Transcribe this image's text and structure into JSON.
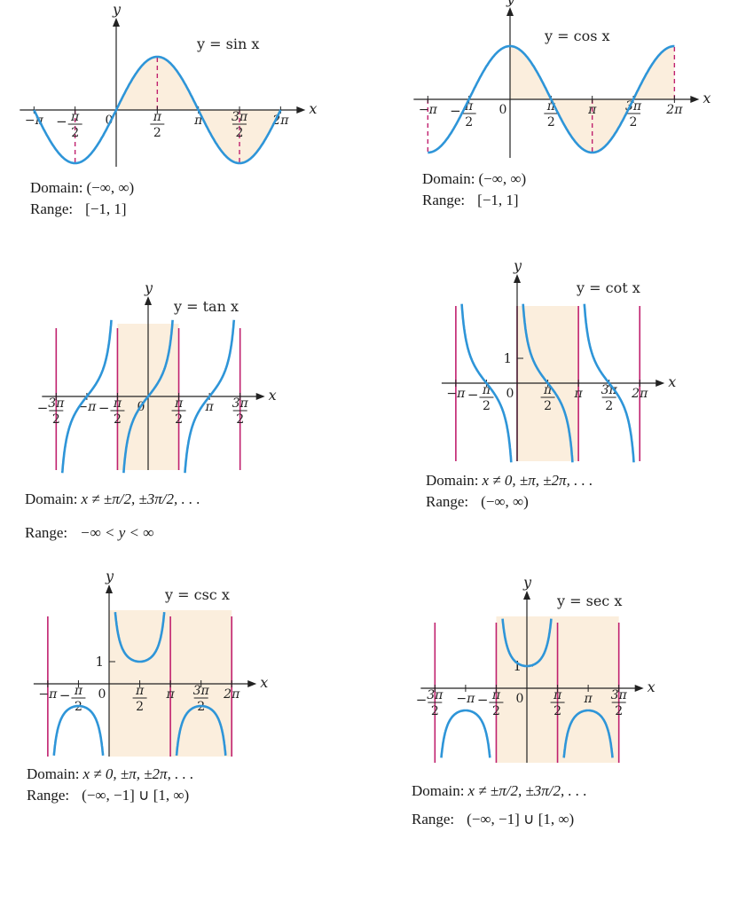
{
  "colors": {
    "curve": "#2e95d8",
    "shade": "#fbeedd",
    "asymptote": "#c0206e",
    "axis": "#222222"
  },
  "chart_data": [
    {
      "type": "line",
      "title": "y = sin x",
      "xlabel": "x",
      "ylabel": "y",
      "xlim": [
        -3.14159,
        6.28318
      ],
      "ylim": [
        -1,
        1
      ],
      "xticks": [
        "−π",
        "−π/2",
        "0",
        "π/2",
        "π",
        "3π/2",
        "2π"
      ],
      "yticks": [],
      "shaded_interval": [
        0,
        6.28318
      ],
      "guide_lines_at": [
        "−π/2",
        "π/2",
        "3π/2"
      ],
      "series": [
        {
          "x": [
            -3.142,
            -2.356,
            -1.571,
            -0.785,
            0,
            0.785,
            1.571,
            2.356,
            3.142,
            3.927,
            4.712,
            5.498,
            6.283
          ],
          "y": [
            0,
            -0.707,
            -1,
            -0.707,
            0,
            0.707,
            1,
            0.707,
            0,
            -0.707,
            -1,
            -0.707,
            0
          ]
        }
      ],
      "domain_label": "Domain:",
      "domain_value": "(−∞, ∞)",
      "range_label": "Range:",
      "range_value": "[−1, 1]"
    },
    {
      "type": "line",
      "title": "y = cos x",
      "xlabel": "x",
      "ylabel": "y",
      "xlim": [
        -3.14159,
        6.28318
      ],
      "ylim": [
        -1,
        1
      ],
      "xticks": [
        "−π",
        "−π/2",
        "0",
        "π/2",
        "π",
        "3π/2",
        "2π"
      ],
      "yticks": [],
      "shaded_interval": [
        0,
        6.28318
      ],
      "guide_lines_at": [
        "−π",
        "π",
        "2π"
      ],
      "series": [
        {
          "x": [
            -3.142,
            -2.356,
            -1.571,
            -0.785,
            0,
            0.785,
            1.571,
            2.356,
            3.142,
            3.927,
            4.712,
            5.498,
            6.283
          ],
          "y": [
            -1,
            -0.707,
            0,
            0.707,
            1,
            0.707,
            0,
            -0.707,
            -1,
            -0.707,
            0,
            0.707,
            1
          ]
        }
      ],
      "domain_label": "Domain:",
      "domain_value": "(−∞, ∞)",
      "range_label": "Range:",
      "range_value": "[−1, 1]"
    },
    {
      "type": "line",
      "title": "y = tan x",
      "xlabel": "x",
      "ylabel": "y",
      "xlim": [
        -4.712,
        4.712
      ],
      "ylim": [
        -3.5,
        3.5
      ],
      "xticks": [
        "−3π/2",
        "−π",
        "−π/2",
        "0",
        "π/2",
        "π",
        "3π/2"
      ],
      "yticks": [],
      "shaded_interval": [
        -1.5708,
        1.5708
      ],
      "asymptotes": [
        "−3π/2",
        "−π/2",
        "π/2",
        "3π/2"
      ],
      "series": [
        {
          "x": [
            -4.4,
            -3.93,
            -3.14,
            -2.36,
            -1.9,
            -1.2,
            -0.785,
            0,
            0.785,
            1.2,
            1.9,
            2.36,
            3.14,
            3.93,
            4.4
          ],
          "y": [
            3.1,
            1,
            0,
            -1,
            2.9,
            -2.6,
            -1,
            0,
            1,
            2.6,
            -2.9,
            -1,
            0,
            1,
            -3.1
          ]
        }
      ],
      "domain_label": "Domain:",
      "domain_value": "x ≠ ±π/2, ±3π/2, . . .",
      "range_label": "Range:",
      "range_value": "−∞ < y < ∞"
    },
    {
      "type": "line",
      "title": "y = cot x",
      "xlabel": "x",
      "ylabel": "y",
      "xlim": [
        -3.14159,
        6.28318
      ],
      "ylim": [
        -3.5,
        3.5
      ],
      "xticks": [
        "−π",
        "−π/2",
        "0",
        "π/2",
        "π",
        "3π/2",
        "2π"
      ],
      "yticks": [
        "1"
      ],
      "shaded_interval": [
        0,
        3.14159
      ],
      "asymptotes": [
        "−π",
        "0",
        "π",
        "2π"
      ],
      "series": [
        {
          "x": [
            -2.8,
            -2.356,
            -1.571,
            -0.785,
            -0.3,
            0.3,
            0.785,
            1.571,
            2.356,
            2.8,
            3.45,
            3.93,
            4.712,
            5.5,
            5.95
          ],
          "y": [
            2.8,
            1,
            0,
            -1,
            -3.2,
            3.2,
            1,
            0,
            -1,
            -2.8,
            3.2,
            1,
            0,
            -1,
            -3.2
          ]
        }
      ],
      "domain_label": "Domain:",
      "domain_value": "x ≠ 0, ±π, ±2π, . . .",
      "range_label": "Range:",
      "range_value": "(−∞, ∞)"
    },
    {
      "type": "line",
      "title": "y = csc x",
      "xlabel": "x",
      "ylabel": "y",
      "xlim": [
        -3.14159,
        6.28318
      ],
      "ylim": [
        -3,
        3
      ],
      "xticks": [
        "−π",
        "−π/2",
        "0",
        "π/2",
        "π",
        "3π/2",
        "2π"
      ],
      "yticks": [
        "1"
      ],
      "shaded_interval": [
        0,
        6.28318
      ],
      "asymptotes": [
        "−π",
        "π",
        "2π"
      ],
      "series": [
        {
          "x": [
            0.35,
            0.785,
            1.571,
            2.356,
            2.8,
            3.5,
            3.93,
            4.712,
            5.5,
            5.93
          ],
          "y": [
            2.9,
            1.414,
            1,
            1.414,
            2.9,
            -2.9,
            -1.414,
            -1,
            -1.414,
            -2.9
          ]
        }
      ],
      "domain_label": "Domain:",
      "domain_value": "x ≠ 0, ±π, ±2π, . . .",
      "range_label": "Range:",
      "range_value": "(−∞, −1] ∪ [1, ∞)"
    },
    {
      "type": "line",
      "title": "y = sec x",
      "xlabel": "x",
      "ylabel": "y",
      "xlim": [
        -4.712,
        4.712
      ],
      "ylim": [
        -3,
        3
      ],
      "xticks": [
        "−3π/2",
        "−π",
        "−π/2",
        "0",
        "π/2",
        "π",
        "3π/2"
      ],
      "yticks": [
        "1"
      ],
      "shaded_interval": [
        -1.5708,
        4.712
      ],
      "asymptotes": [
        "−3π/2",
        "−π/2",
        "π/2",
        "3π/2"
      ],
      "series": [
        {
          "x": [
            -4.3,
            -3.93,
            -3.14,
            -2.36,
            -1.9,
            -1.2,
            -0.785,
            0,
            0.785,
            1.2,
            1.9,
            2.36,
            3.14,
            3.93,
            4.3
          ],
          "y": [
            -2.4,
            -1.414,
            -1,
            -1.414,
            -2.4,
            2.7,
            1.414,
            1,
            1.414,
            2.7,
            -2.4,
            -1.414,
            -1,
            -1.414,
            -2.4
          ]
        }
      ],
      "domain_label": "Domain:",
      "domain_value": "x ≠ ±π/2, ±3π/2, . . .",
      "range_label": "Range:",
      "range_value": "(−∞, −1] ∪ [1, ∞)"
    }
  ]
}
